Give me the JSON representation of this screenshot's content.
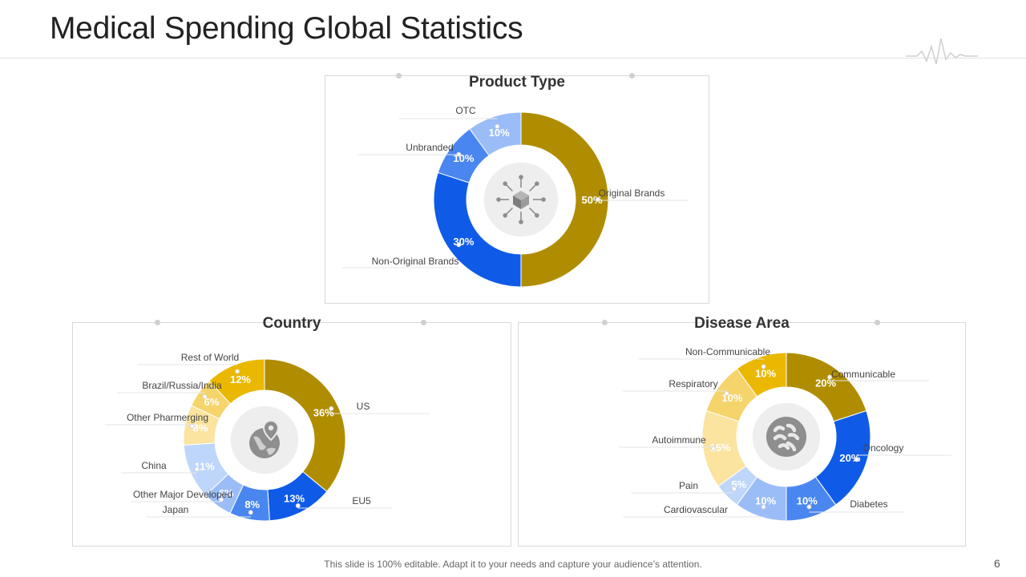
{
  "page": {
    "title": "Medical Spending Global Statistics",
    "footer": "This slide is 100% editable. Adapt it to your needs and capture your audience’s attention.",
    "page_number": "6"
  },
  "colors": {
    "dark_gold": "#B08D00",
    "gold": "#EAB800",
    "light_gold": "#F5D46B",
    "pale_gold": "#FBE3A0",
    "blue": "#0F5BE8",
    "medium_blue": "#4A86F0",
    "light_blue": "#9ABDF7",
    "pale_blue": "#BFD6FB"
  },
  "chart_data": [
    {
      "type": "pie",
      "title": "Product Type",
      "icon": "cube-network-icon",
      "categories": [
        "Original Brands",
        "Non-Original Brands",
        "Unbranded",
        "OTC"
      ],
      "values": [
        50,
        30,
        10,
        10
      ],
      "labels": [
        "50%",
        "30%",
        "10%",
        "10%"
      ],
      "colors": [
        "#B08D00",
        "#0F5BE8",
        "#4A86F0",
        "#9ABDF7"
      ]
    },
    {
      "type": "pie",
      "title": "Country",
      "icon": "globe-pin-icon",
      "categories": [
        "US",
        "EU5",
        "Japan",
        "Other Major Developed",
        "China",
        "Other Pharmerging",
        "Brazil/Russia/India",
        "Rest of World"
      ],
      "values": [
        36,
        13,
        8,
        6,
        11,
        8,
        6,
        12
      ],
      "labels": [
        "36%",
        "13%",
        "8%",
        "6%",
        "11%",
        "8%",
        "6%",
        "12%"
      ],
      "colors": [
        "#B08D00",
        "#0F5BE8",
        "#4A86F0",
        "#9ABDF7",
        "#BFD6FB",
        "#FBE3A0",
        "#F5D46B",
        "#EAB800"
      ]
    },
    {
      "type": "pie",
      "title": "Disease Area",
      "icon": "bacteria-icon",
      "categories": [
        "Communicable",
        "Oncology",
        "Diabetes",
        "Cardiovascular",
        "Pain",
        "Autoimmune",
        "Respiratory",
        "Non-Communicable"
      ],
      "values": [
        20,
        20,
        10,
        10,
        5,
        15,
        10,
        10
      ],
      "labels": [
        "20%",
        "20%",
        "10%",
        "10%",
        "5%",
        "15%",
        "10%",
        "10%"
      ],
      "colors": [
        "#B08D00",
        "#0F5BE8",
        "#4A86F0",
        "#9ABDF7",
        "#BFD6FB",
        "#FBE3A0",
        "#F5D46B",
        "#EAB800"
      ]
    }
  ]
}
